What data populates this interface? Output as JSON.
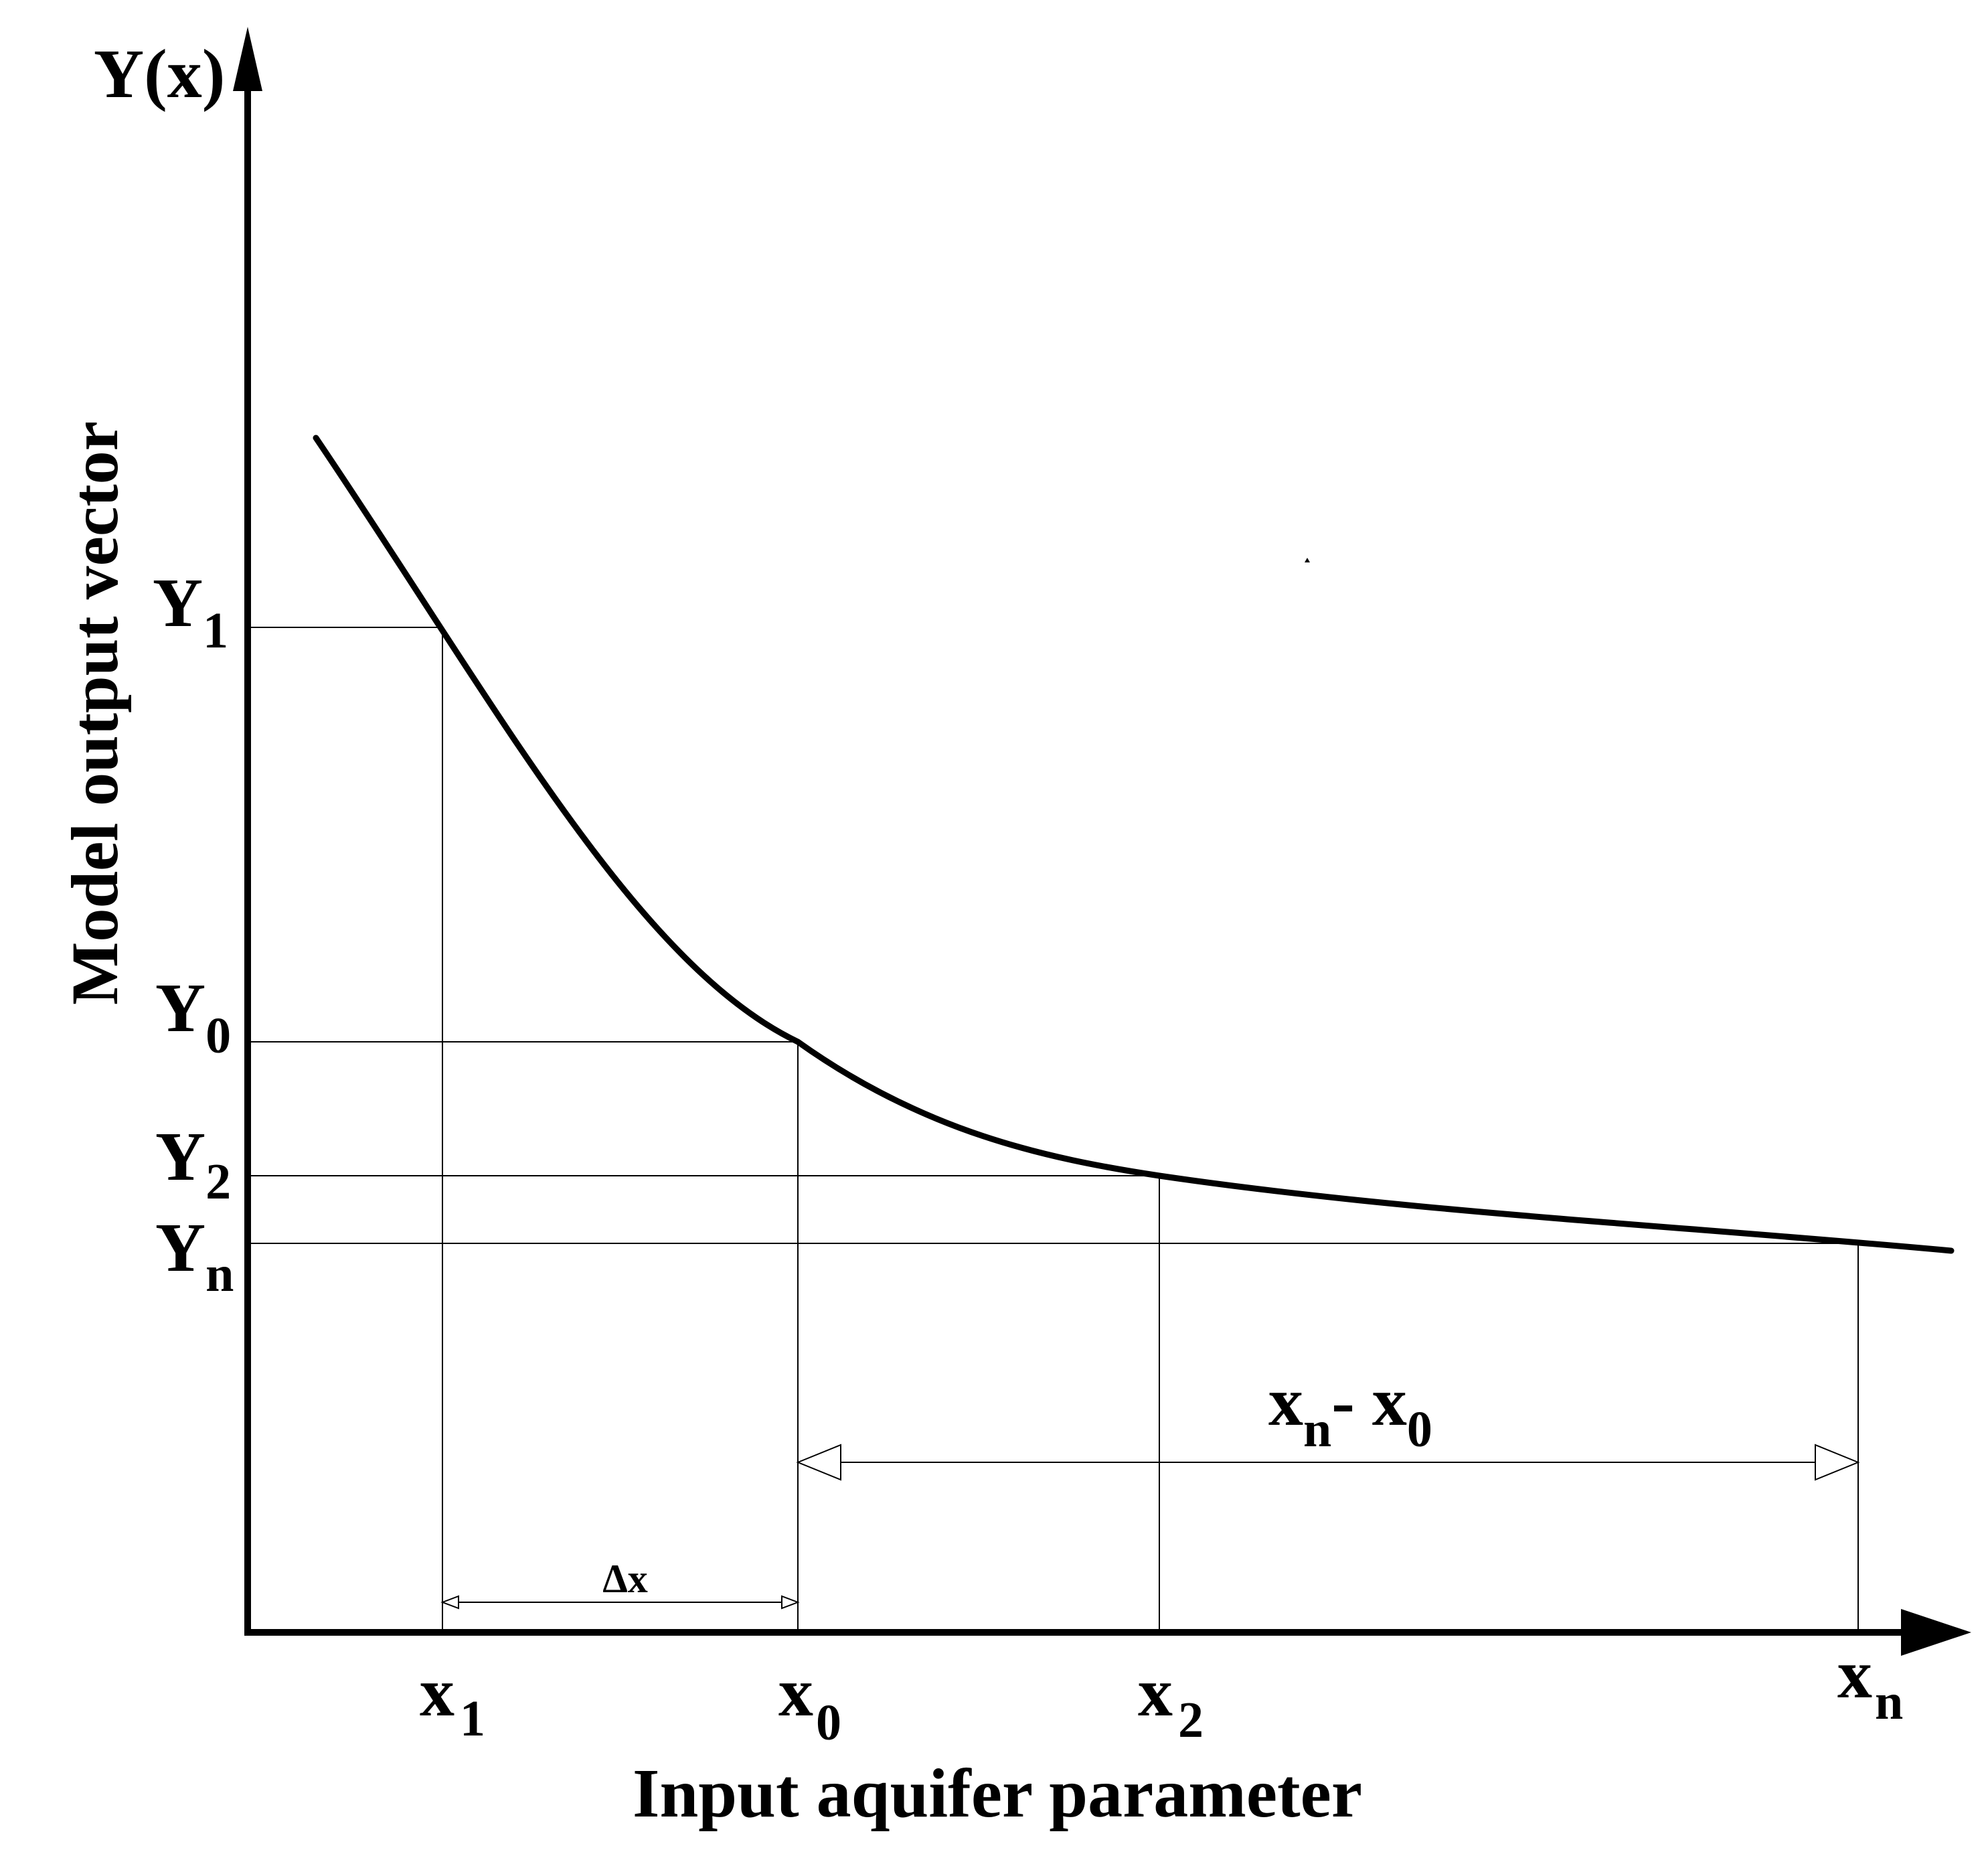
{
  "figure": {
    "y_axis_symbol": "Y(x)",
    "y_axis_label": "Model output vector",
    "x_axis_label": "Input aquifer parameter",
    "y_levels": [
      {
        "base": "Y",
        "sub": "1"
      },
      {
        "base": "Y",
        "sub": "0"
      },
      {
        "base": "Y",
        "sub": "2"
      },
      {
        "base": "Y",
        "sub": "n"
      }
    ],
    "x_points": [
      {
        "base": "x",
        "sub": "1"
      },
      {
        "base": "x",
        "sub": "0"
      },
      {
        "base": "x",
        "sub": "2"
      },
      {
        "base": "x",
        "sub": "n"
      }
    ],
    "delta_label": "Δx",
    "span_label": {
      "a_base": "x",
      "a_sub": "n",
      "sep": "- ",
      "b_base": "x",
      "b_sub": "0"
    },
    "colors": {
      "ink": "#000000",
      "background": "#ffffff"
    }
  }
}
